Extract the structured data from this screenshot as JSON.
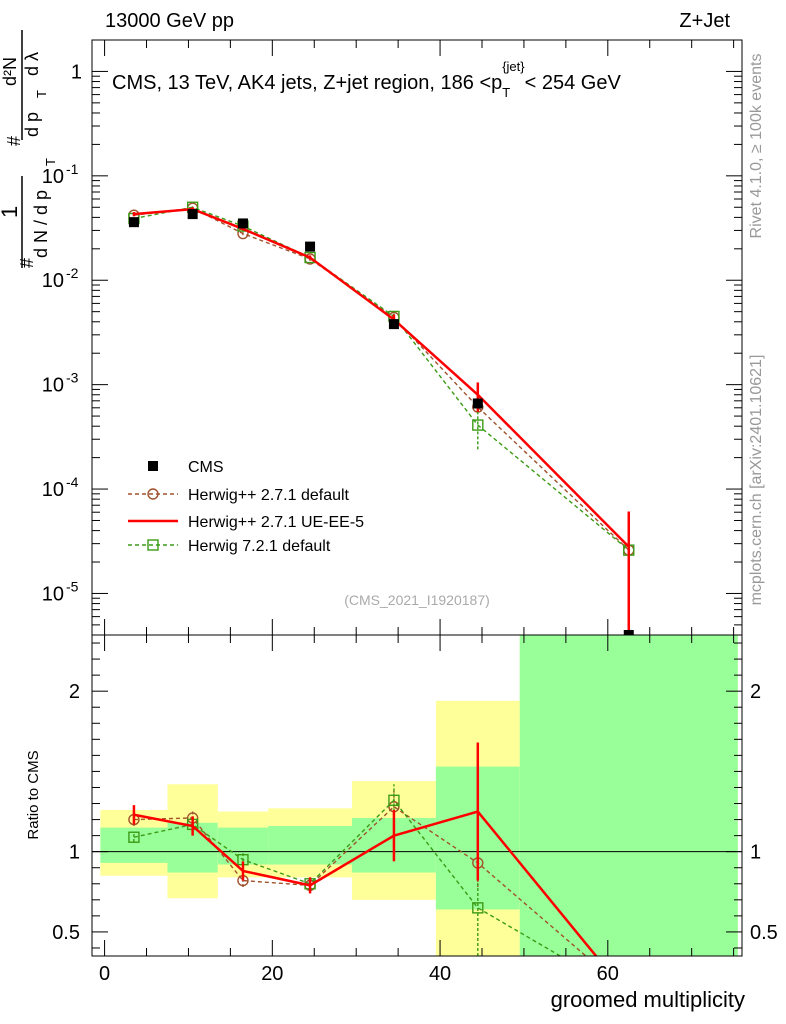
{
  "header": {
    "left_label": "13000 GeV pp",
    "right_label": "Z+Jet"
  },
  "side_labels": {
    "rivet": "Rivet 4.1.0, ≥ 100k events",
    "mcplots": "mcplots.cern.ch [arXiv:2401.10621]"
  },
  "colors": {
    "cms": "#000000",
    "herwig_default": "#a0522d",
    "herwig_ue": "#ff0000",
    "herwig7": "#3c9b16",
    "band_1sigma": "#99ff99",
    "band_2sigma": "#ffff99"
  },
  "chart_data": [
    {
      "type": "line",
      "panel": "main",
      "title": "CMS, 13 TeV, AK4 jets, Z+jet region, 186 <p_T^{jet}< 254 GeV",
      "title_parts": {
        "main": "CMS, 13 TeV, AK4 jets, Z+jet region, 186 <p",
        "sub": "T",
        "sup": "{jet}",
        "tail": "< 254 GeV"
      },
      "ylabel": "1/(dN/dp_T) d²N/(dp_T dλ)",
      "ylabel_parts": {
        "one": "1",
        "hash": "#",
        "dN": "d N / d p",
        "T": "T",
        "d2N": "d²N",
        "dpdl": "d p",
        "dl": "d λ"
      },
      "xlabel": "groomed multiplicity",
      "yscale": "log",
      "ylim": [
        4e-06,
        2
      ],
      "xlim": [
        -1.5,
        76
      ],
      "y_ticks": [
        {
          "v": 1,
          "label": "1"
        },
        {
          "v": 0.1,
          "label": "10",
          "exp": "-1"
        },
        {
          "v": 0.01,
          "label": "10",
          "exp": "-2"
        },
        {
          "v": 0.001,
          "label": "10",
          "exp": "-3"
        },
        {
          "v": 0.0001,
          "label": "10",
          "exp": "-4"
        },
        {
          "v": 1e-05,
          "label": "10",
          "exp": "-5"
        }
      ],
      "watermark": "(CMS_2021_I1920187)",
      "legend_position": "lower-left",
      "series": [
        {
          "name": "CMS",
          "style": "marker-square",
          "color": "#000000",
          "x": [
            3.5,
            10.5,
            16.5,
            24.5,
            34.5,
            44.5,
            62.5
          ],
          "y": [
            0.036,
            0.043,
            0.035,
            0.021,
            0.0038,
            0.00066,
            4e-06
          ],
          "err": [
            0.001,
            0.001,
            0.001,
            0.0008,
            0.0002,
            5e-05,
            0
          ]
        },
        {
          "name": "Herwig++ 2.7.1 default",
          "style": "dashed-circle",
          "color": "#a0522d",
          "x": [
            3.5,
            10.5,
            16.5,
            24.5,
            34.5,
            44.5,
            62.5
          ],
          "y": [
            0.042,
            0.049,
            0.028,
            0.016,
            0.0044,
            0.00061,
            2.6e-05
          ],
          "err": [
            0.001,
            0.001,
            0.001,
            0.0007,
            0.0003,
            8e-05,
            1.2e-05
          ]
        },
        {
          "name": "Herwig++ 2.7.1 UE-EE-5",
          "style": "solid",
          "color": "#ff0000",
          "x": [
            3.5,
            10.5,
            16.5,
            24.5,
            34.5,
            44.5,
            62.5
          ],
          "y": [
            0.043,
            0.048,
            0.031,
            0.0165,
            0.0042,
            0.0008,
            2.8e-05
          ],
          "err": [
            0.002,
            0.002,
            0.001,
            0.0008,
            0.0005,
            0.00025,
            3.3e-05
          ]
        },
        {
          "name": "Herwig 7.2.1 default",
          "style": "dashed-square",
          "color": "#3c9b16",
          "x": [
            3.5,
            10.5,
            16.5,
            24.5,
            34.5,
            44.5,
            62.5
          ],
          "y": [
            0.039,
            0.05,
            0.033,
            0.0165,
            0.0045,
            0.00041,
            2.6e-05
          ],
          "err": [
            0.001,
            0.001,
            0.001,
            0.0007,
            0.0003,
            0.00017,
            1.2e-05
          ]
        }
      ]
    },
    {
      "type": "line",
      "panel": "ratio",
      "ylabel": "Ratio to CMS",
      "xlabel": "groomed multiplicity",
      "ylim": [
        0.35,
        2.35
      ],
      "xlim": [
        -1.5,
        76
      ],
      "x_ticks": [
        0,
        20,
        40,
        60
      ],
      "y_ticks": [
        {
          "v": 0.5,
          "label": "0.5"
        },
        {
          "v": 1,
          "label": "1"
        },
        {
          "v": 2,
          "label": "2"
        }
      ],
      "bands": [
        {
          "x0": -0.5,
          "x1": 7.5,
          "y2lo": 0.85,
          "y2hi": 1.26,
          "y1lo": 0.93,
          "y1hi": 1.15
        },
        {
          "x0": 7.5,
          "x1": 13.5,
          "y2lo": 0.71,
          "y2hi": 1.42,
          "y1lo": 0.87,
          "y1hi": 1.18
        },
        {
          "x0": 13.5,
          "x1": 19.5,
          "y2lo": 0.84,
          "y2hi": 1.25,
          "y1lo": 0.92,
          "y1hi": 1.15
        },
        {
          "x0": 19.5,
          "x1": 29.5,
          "y2lo": 0.84,
          "y2hi": 1.27,
          "y1lo": 0.92,
          "y1hi": 1.16
        },
        {
          "x0": 29.5,
          "x1": 39.5,
          "y2lo": 0.7,
          "y2hi": 1.44,
          "y1lo": 0.87,
          "y1hi": 1.21
        },
        {
          "x0": 39.5,
          "x1": 49.5,
          "y2lo": 0.35,
          "y2hi": 1.94,
          "y1lo": 0.64,
          "y1hi": 1.53
        },
        {
          "x0": 49.5,
          "x1": 75.5,
          "y2lo": 0.35,
          "y2hi": 2.35,
          "y1lo": 0.35,
          "y1hi": 2.35
        }
      ],
      "series": [
        {
          "name": "Herwig++ 2.7.1 default",
          "style": "dashed-circle",
          "color": "#a0522d",
          "x": [
            3.5,
            10.5,
            16.5,
            24.5,
            34.5,
            44.5,
            62.5
          ],
          "y": [
            1.2,
            1.21,
            0.82,
            0.79,
            1.28,
            0.93,
            0.12
          ],
          "err": [
            0.04,
            0.04,
            0.04,
            0.04,
            0.1,
            0.15,
            0.05
          ]
        },
        {
          "name": "Herwig++ 2.7.1 UE-EE-5",
          "style": "solid",
          "color": "#ff0000",
          "x": [
            3.5,
            10.5,
            16.5,
            24.5,
            34.5,
            44.5,
            62.5
          ],
          "y": [
            1.23,
            1.16,
            0.88,
            0.79,
            1.1,
            1.25,
            0.1
          ],
          "err": [
            0.06,
            0.06,
            0.06,
            0.05,
            0.16,
            0.43,
            0.05
          ]
        },
        {
          "name": "Herwig 7.2.1 default",
          "style": "dashed-square",
          "color": "#3c9b16",
          "x": [
            3.5,
            10.5,
            16.5,
            24.5,
            34.5,
            44.5,
            62.5
          ],
          "y": [
            1.09,
            1.17,
            0.95,
            0.8,
            1.32,
            0.65,
            0.1
          ],
          "err": [
            0.03,
            0.03,
            0.04,
            0.04,
            0.1,
            0.3,
            0.05
          ]
        }
      ]
    }
  ]
}
